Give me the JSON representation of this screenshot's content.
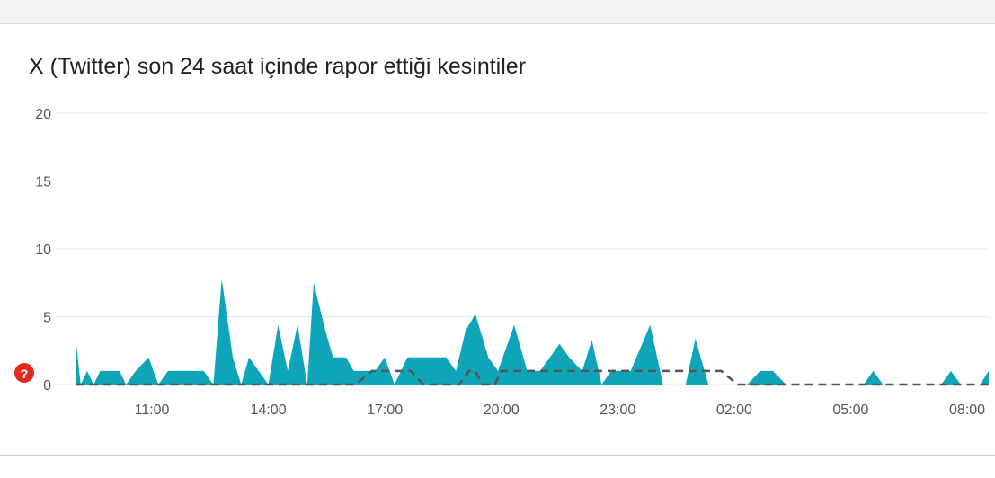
{
  "chart_data": {
    "type": "area",
    "title": "X (Twitter) son 24 saat içinde rapor ettiği kesintiler",
    "xlabel": "",
    "ylabel": "",
    "ylim": [
      0,
      20
    ],
    "yticks": [
      0,
      5,
      10,
      15,
      20
    ],
    "xticks": [
      "11:00",
      "14:00",
      "17:00",
      "20:00",
      "23:00",
      "02:00",
      "05:00",
      "08:00"
    ],
    "x_start": "09:03",
    "x_end": "08:39",
    "grid": true,
    "colors": {
      "area": "#0fa5b8",
      "baseline": "#555555",
      "grid": "#e6e6e6",
      "alert": "#e5291e"
    },
    "series": [
      {
        "kind": "area",
        "points": [
          [
            "09:03",
            3
          ],
          [
            "09:10",
            0
          ],
          [
            "09:20",
            1
          ],
          [
            "09:30",
            0
          ],
          [
            "09:40",
            1
          ],
          [
            "09:50",
            1
          ],
          [
            "10:00",
            1
          ],
          [
            "10:10",
            1
          ],
          [
            "10:20",
            0
          ],
          [
            "10:35",
            1
          ],
          [
            "10:55",
            2
          ],
          [
            "11:10",
            0
          ],
          [
            "11:25",
            1
          ],
          [
            "11:40",
            1
          ],
          [
            "12:00",
            1
          ],
          [
            "12:20",
            1
          ],
          [
            "12:35",
            0
          ],
          [
            "12:48",
            7.8
          ],
          [
            "13:05",
            2
          ],
          [
            "13:18",
            0
          ],
          [
            "13:30",
            2
          ],
          [
            "13:45",
            1
          ],
          [
            "14:00",
            0
          ],
          [
            "14:15",
            4.4
          ],
          [
            "14:30",
            1
          ],
          [
            "14:45",
            4.4
          ],
          [
            "15:00",
            0
          ],
          [
            "15:10",
            7.5
          ],
          [
            "15:28",
            4
          ],
          [
            "15:40",
            2
          ],
          [
            "16:00",
            2
          ],
          [
            "16:12",
            1
          ],
          [
            "16:30",
            1
          ],
          [
            "16:45",
            1
          ],
          [
            "17:00",
            2
          ],
          [
            "17:15",
            0
          ],
          [
            "17:35",
            2
          ],
          [
            "18:00",
            2
          ],
          [
            "18:20",
            2
          ],
          [
            "18:35",
            2
          ],
          [
            "18:50",
            1
          ],
          [
            "19:05",
            4
          ],
          [
            "19:20",
            5.2
          ],
          [
            "19:40",
            2
          ],
          [
            "19:55",
            1
          ],
          [
            "20:20",
            4.4
          ],
          [
            "20:40",
            1
          ],
          [
            "21:00",
            1
          ],
          [
            "21:15",
            2
          ],
          [
            "21:30",
            3
          ],
          [
            "21:45",
            2
          ],
          [
            "22:05",
            1
          ],
          [
            "22:20",
            3.3
          ],
          [
            "22:35",
            0
          ],
          [
            "22:50",
            1
          ],
          [
            "23:20",
            1
          ],
          [
            "23:50",
            4.4
          ],
          [
            "24:10",
            0
          ],
          [
            "24:45",
            0
          ],
          [
            "25:00",
            3.4
          ],
          [
            "25:20",
            0
          ],
          [
            "26:20",
            0
          ],
          [
            "26:40",
            1
          ],
          [
            "27:00",
            1
          ],
          [
            "27:20",
            0
          ],
          [
            "29:20",
            0
          ],
          [
            "29:35",
            1
          ],
          [
            "29:50",
            0
          ],
          [
            "31:20",
            0
          ],
          [
            "31:35",
            1
          ],
          [
            "31:50",
            0
          ],
          [
            "32:20",
            0
          ],
          [
            "32:35",
            1
          ]
        ]
      },
      {
        "kind": "baseline",
        "style": "dashed",
        "points": [
          [
            "09:03",
            0
          ],
          [
            "16:15",
            0
          ],
          [
            "16:40",
            1
          ],
          [
            "17:40",
            1
          ],
          [
            "18:00",
            0
          ],
          [
            "18:55",
            0
          ],
          [
            "19:10",
            1
          ],
          [
            "19:20",
            1
          ],
          [
            "19:30",
            0
          ],
          [
            "19:50",
            0
          ],
          [
            "20:00",
            1
          ],
          [
            "22:00",
            1
          ],
          [
            "25:40",
            1
          ],
          [
            "26:05",
            0
          ],
          [
            "32:39",
            0
          ]
        ]
      }
    ]
  },
  "alert_icon": {
    "name": "question-icon",
    "glyph": "?"
  }
}
